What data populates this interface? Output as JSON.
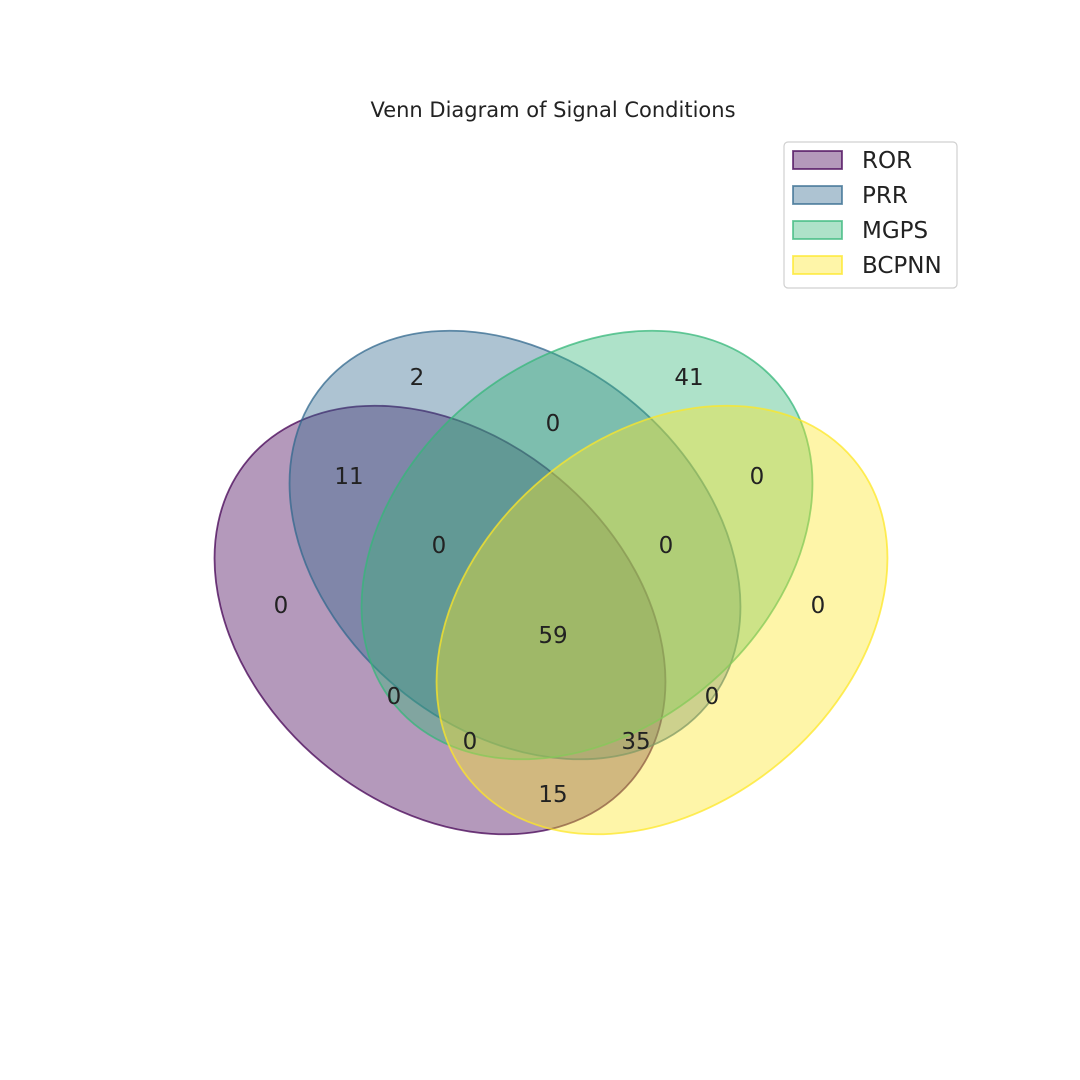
{
  "title": "Venn Diagram of Signal Conditions",
  "sets": [
    {
      "key": "ror",
      "name": "ROR",
      "fill": "#440154",
      "stroke": "#440154"
    },
    {
      "key": "prr",
      "name": "PRR",
      "fill": "#31688e",
      "stroke": "#31688e"
    },
    {
      "key": "mgps",
      "name": "MGPS",
      "fill": "#35b779",
      "stroke": "#35b779"
    },
    {
      "key": "bcpnn",
      "name": "BCPNN",
      "fill": "#fde725",
      "stroke": "#fde725"
    }
  ],
  "regions": [
    {
      "sets": [
        "PRR"
      ],
      "value": "2"
    },
    {
      "sets": [
        "MGPS"
      ],
      "value": "41"
    },
    {
      "sets": [
        "PRR",
        "MGPS"
      ],
      "value": "0"
    },
    {
      "sets": [
        "ROR",
        "PRR"
      ],
      "value": "11"
    },
    {
      "sets": [
        "MGPS",
        "BCPNN"
      ],
      "value": "0"
    },
    {
      "sets": [
        "ROR",
        "PRR",
        "MGPS"
      ],
      "value": "0"
    },
    {
      "sets": [
        "PRR",
        "MGPS",
        "BCPNN"
      ],
      "value": "0"
    },
    {
      "sets": [
        "ROR"
      ],
      "value": "0"
    },
    {
      "sets": [
        "BCPNN"
      ],
      "value": "0"
    },
    {
      "sets": [
        "ROR",
        "PRR",
        "MGPS",
        "BCPNN"
      ],
      "value": "59"
    },
    {
      "sets": [
        "ROR",
        "MGPS"
      ],
      "value": "0"
    },
    {
      "sets": [
        "PRR",
        "BCPNN"
      ],
      "value": "0"
    },
    {
      "sets": [
        "ROR",
        "MGPS",
        "BCPNN"
      ],
      "value": "0"
    },
    {
      "sets": [
        "ROR",
        "PRR",
        "BCPNN"
      ],
      "value": "35"
    },
    {
      "sets": [
        "ROR",
        "BCPNN"
      ],
      "value": "15"
    }
  ]
}
